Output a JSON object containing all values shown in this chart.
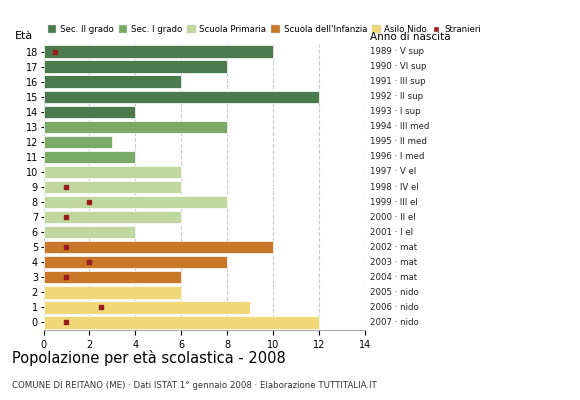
{
  "title": "Popolazione per età scolastica - 2008",
  "subtitle": "COMUNE DI REITANO (ME) · Dati ISTAT 1° gennaio 2008 · Elaborazione TUTTITALIA.IT",
  "label_eta": "Età",
  "label_anno": "Anno di nascita",
  "ages": [
    18,
    17,
    16,
    15,
    14,
    13,
    12,
    11,
    10,
    9,
    8,
    7,
    6,
    5,
    4,
    3,
    2,
    1,
    0
  ],
  "years": [
    "1989 · V sup",
    "1990 · VI sup",
    "1991 · III sup",
    "1992 · II sup",
    "1993 · I sup",
    "1994 · III med",
    "1995 · II med",
    "1996 · I med",
    "1997 · V el",
    "1998 · IV el",
    "1999 · III el",
    "2000 · II el",
    "2001 · I el",
    "2002 · mat",
    "2003 · mat",
    "2004 · mat",
    "2005 · nido",
    "2006 · nido",
    "2007 · nido"
  ],
  "bar_values": [
    10,
    8,
    6,
    12,
    4,
    8,
    3,
    4,
    6,
    6,
    8,
    6,
    4,
    10,
    8,
    6,
    6,
    9,
    12
  ],
  "stranieri": [
    0.5,
    -1,
    -1,
    -1,
    -1,
    -1,
    -1,
    -1,
    -1,
    1,
    2,
    1,
    -1,
    1,
    2,
    1,
    -1,
    2.5,
    1
  ],
  "bar_colors": [
    "#4a7a4e",
    "#4a7a4e",
    "#4a7a4e",
    "#4a7a4e",
    "#4a7a4e",
    "#7aaa68",
    "#7aaa68",
    "#7aaa68",
    "#c0d8a0",
    "#c0d8a0",
    "#c0d8a0",
    "#c0d8a0",
    "#c0d8a0",
    "#c87828",
    "#c87828",
    "#c87828",
    "#f0d878",
    "#f0d878",
    "#f0d878"
  ],
  "legend_labels": [
    "Sec. II grado",
    "Sec. I grado",
    "Scuola Primaria",
    "Scuola dell'Infanzia",
    "Asilo Nido",
    "Stranieri"
  ],
  "legend_colors": [
    "#4a7a4e",
    "#7aaa68",
    "#c0d8a0",
    "#c87828",
    "#f0d878",
    "#9b1c1c"
  ],
  "stranieri_color": "#9b1c1c",
  "xlim": [
    0,
    14
  ],
  "xticks": [
    0,
    2,
    4,
    6,
    8,
    10,
    12,
    14
  ],
  "grid_color": "#cccccc",
  "background_color": "#ffffff"
}
